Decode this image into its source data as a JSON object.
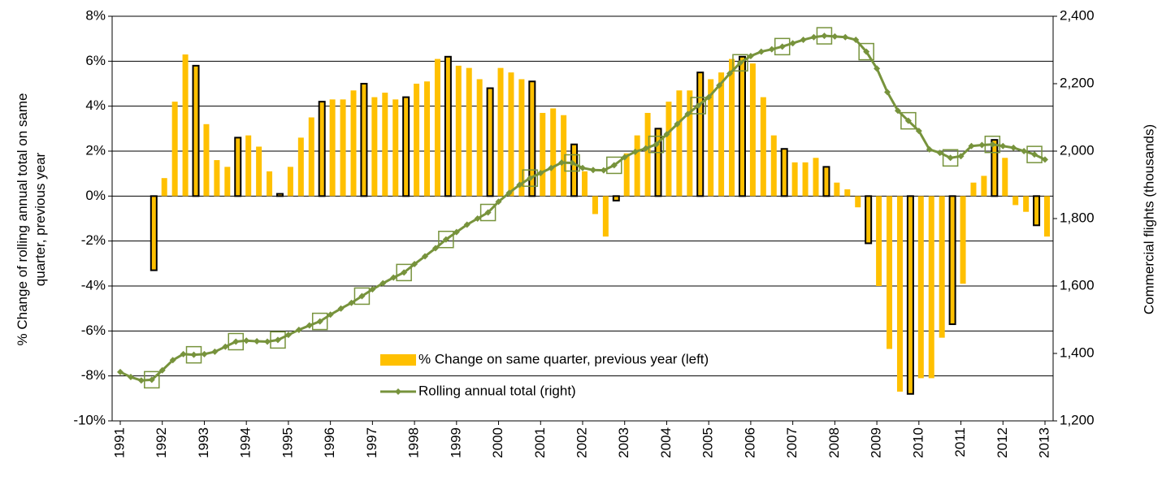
{
  "chart_data": {
    "type": "bar-line",
    "categories": [
      "1991",
      null,
      null,
      null,
      "1992",
      null,
      null,
      null,
      "1993",
      null,
      null,
      null,
      "1994",
      null,
      null,
      null,
      "1995",
      null,
      null,
      null,
      "1996",
      null,
      null,
      null,
      "1997",
      null,
      null,
      null,
      "1998",
      null,
      null,
      null,
      "1999",
      null,
      null,
      null,
      "2000",
      null,
      null,
      null,
      "2001",
      null,
      null,
      null,
      "2002",
      null,
      null,
      null,
      "2003",
      null,
      null,
      null,
      "2004",
      null,
      null,
      null,
      "2005",
      null,
      null,
      null,
      "2006",
      null,
      null,
      null,
      "2007",
      null,
      null,
      null,
      "2008",
      null,
      null,
      null,
      "2009",
      null,
      null,
      null,
      "2010",
      null,
      null,
      null,
      "2011",
      null,
      null,
      null,
      "2012",
      null,
      null,
      null,
      "2013"
    ],
    "y_label": "% Change of rolling annual total on same quarter, previous year",
    "y2_label": "Commercial flights (thousands)",
    "ylim": [
      -10,
      8
    ],
    "yticks": [
      {
        "value": -10,
        "label": "-10%"
      },
      {
        "value": -8,
        "label": "-8%"
      },
      {
        "value": -6,
        "label": "-6%"
      },
      {
        "value": -4,
        "label": "-4%"
      },
      {
        "value": -2,
        "label": "-2%"
      },
      {
        "value": 0,
        "label": "0%"
      },
      {
        "value": 2,
        "label": "2%"
      },
      {
        "value": 4,
        "label": "4%"
      },
      {
        "value": 6,
        "label": "6%"
      },
      {
        "value": 8,
        "label": "8%"
      }
    ],
    "y2lim": [
      1200,
      2400
    ],
    "y2ticks": [
      {
        "value": 1200,
        "label": "1,200"
      },
      {
        "value": 1400,
        "label": "1,400"
      },
      {
        "value": 1600,
        "label": "1,600"
      },
      {
        "value": 1800,
        "label": "1,800"
      },
      {
        "value": 2000,
        "label": "2,000"
      },
      {
        "value": 2200,
        "label": "2,200"
      },
      {
        "value": 2400,
        "label": "2,400"
      }
    ],
    "grid": true,
    "legend": "lower-center",
    "series": [
      {
        "name": "% Change on same quarter, previous year (left)",
        "type": "bar",
        "color": "#FFC000",
        "outline_color": "#000000",
        "values": [
          null,
          null,
          null,
          -3.3,
          0.8,
          4.2,
          6.3,
          5.8,
          3.2,
          1.6,
          1.3,
          2.6,
          2.7,
          2.2,
          1.1,
          0.1,
          1.3,
          2.6,
          3.5,
          4.2,
          4.3,
          4.3,
          4.7,
          5.0,
          4.4,
          4.6,
          4.3,
          4.4,
          5.0,
          5.1,
          6.1,
          6.2,
          5.8,
          5.7,
          5.2,
          4.8,
          5.7,
          5.5,
          5.2,
          5.1,
          3.7,
          3.9,
          3.6,
          2.3,
          1.1,
          -0.8,
          -1.8,
          -0.2,
          1.9,
          2.7,
          3.7,
          3.0,
          4.2,
          4.7,
          4.7,
          5.5,
          5.2,
          5.5,
          6.1,
          6.2,
          5.9,
          4.4,
          2.7,
          2.1,
          1.5,
          1.5,
          1.7,
          1.3,
          0.6,
          0.3,
          -0.5,
          -2.1,
          -4.0,
          -6.8,
          -8.7,
          -8.8,
          -8.1,
          -8.1,
          -6.3,
          -5.7,
          -3.9,
          0.6,
          0.9,
          2.5,
          1.7,
          -0.4,
          -0.7,
          -1.3,
          -1.8
        ]
      },
      {
        "name": "Rolling annual total (right)",
        "type": "line",
        "color": "#77933C",
        "axis": "y2",
        "values": [
          1345,
          1330,
          1320,
          1322,
          1350,
          1380,
          1398,
          1396,
          1398,
          1405,
          1420,
          1435,
          1438,
          1436,
          1435,
          1440,
          1455,
          1470,
          1483,
          1495,
          1515,
          1533,
          1550,
          1570,
          1590,
          1608,
          1625,
          1640,
          1665,
          1688,
          1712,
          1738,
          1760,
          1782,
          1800,
          1818,
          1850,
          1876,
          1900,
          1920,
          1935,
          1950,
          1966,
          1965,
          1950,
          1944,
          1943,
          1958,
          1982,
          1998,
          2008,
          2020,
          2050,
          2080,
          2110,
          2135,
          2160,
          2195,
          2230,
          2262,
          2282,
          2295,
          2302,
          2310,
          2320,
          2330,
          2338,
          2342,
          2340,
          2338,
          2330,
          2295,
          2245,
          2175,
          2120,
          2090,
          2060,
          2005,
          1995,
          1980,
          1985,
          2015,
          2018,
          2020,
          2015,
          2010,
          2000,
          1990,
          1975
        ]
      }
    ]
  }
}
